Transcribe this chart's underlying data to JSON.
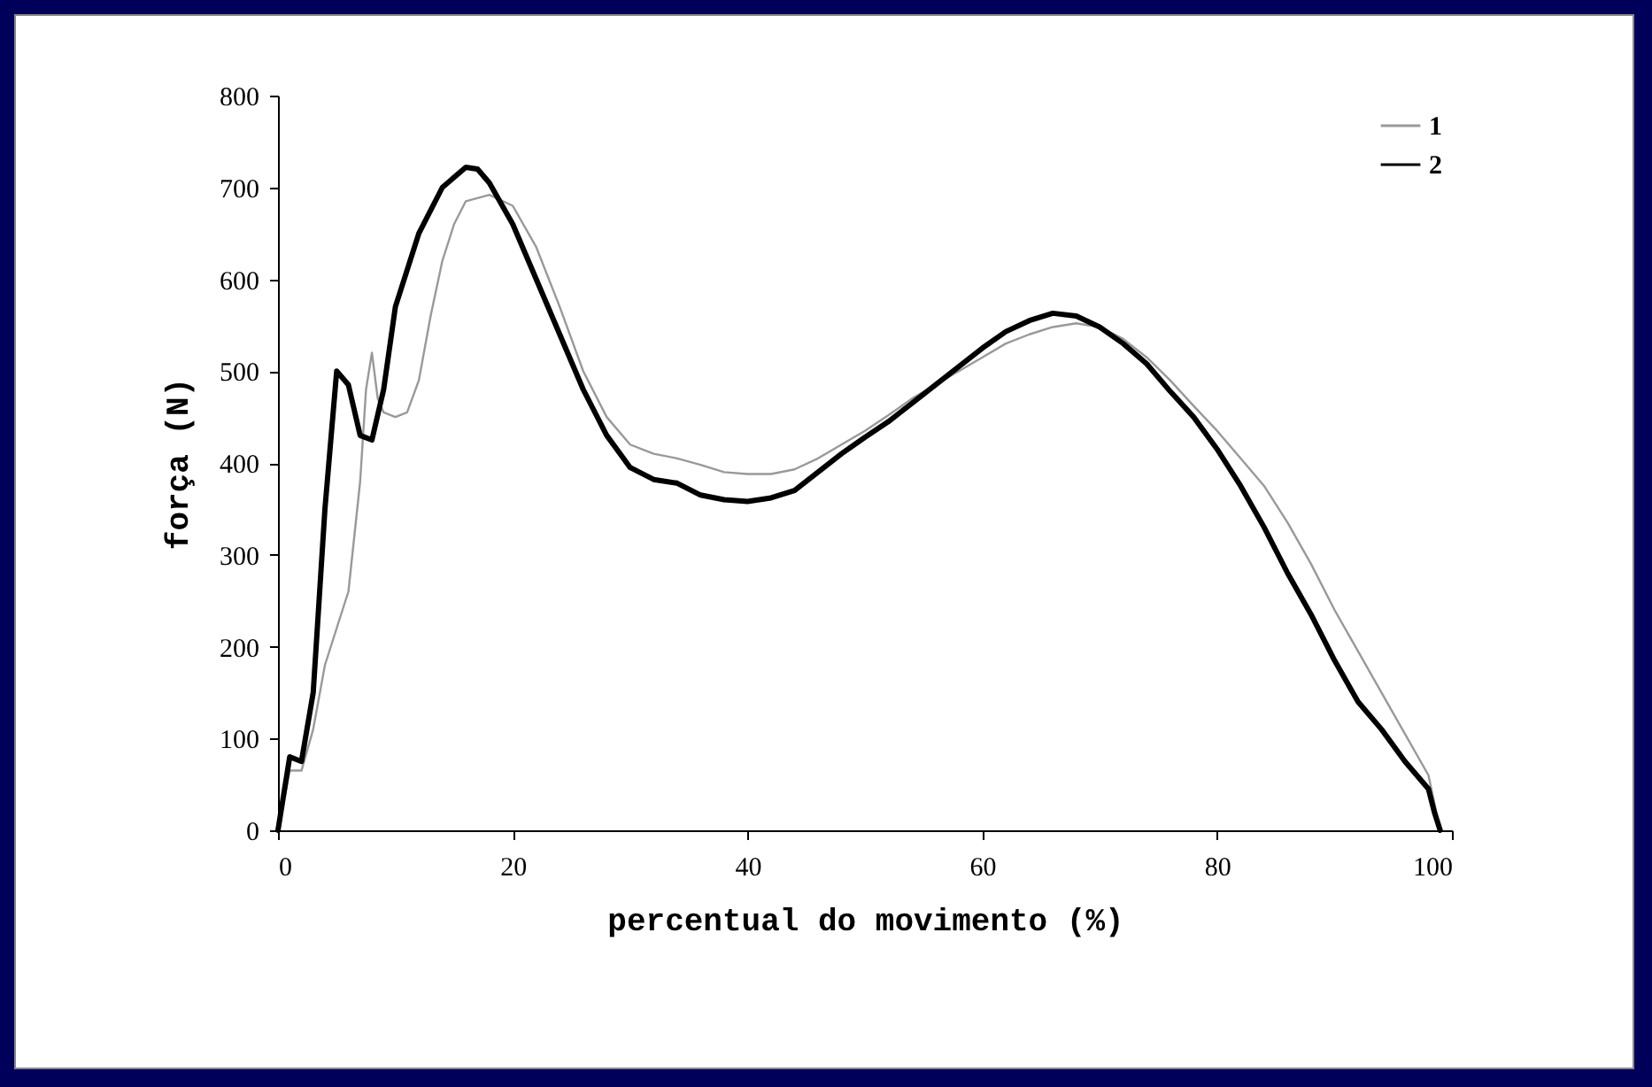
{
  "chart_data": {
    "type": "line",
    "xlabel": "percentual do movimento (%)",
    "ylabel": "força (N)",
    "xlim": [
      0,
      100
    ],
    "xticks": [
      0,
      20,
      40,
      60,
      80,
      100
    ],
    "ylim": [
      0,
      800
    ],
    "yticks": [
      0,
      100,
      200,
      300,
      400,
      500,
      600,
      700,
      800
    ],
    "grid": false,
    "legend": "top right",
    "series": [
      {
        "name": "1",
        "color": "#999999",
        "x": [
          0,
          1,
          2,
          3,
          4,
          5,
          6,
          7,
          7.5,
          8,
          8.5,
          9,
          10,
          11,
          12,
          13,
          14,
          15,
          16,
          18,
          20,
          22,
          24,
          26,
          28,
          30,
          32,
          34,
          36,
          38,
          40,
          42,
          44,
          46,
          48,
          50,
          52,
          54,
          56,
          58,
          60,
          62,
          64,
          66,
          68,
          70,
          72,
          74,
          76,
          78,
          80,
          82,
          84,
          86,
          88,
          90,
          92,
          94,
          96,
          98,
          99
        ],
        "values": [
          0,
          65,
          65,
          110,
          180,
          220,
          260,
          380,
          480,
          520,
          470,
          455,
          450,
          455,
          490,
          560,
          620,
          660,
          685,
          692,
          680,
          635,
          570,
          500,
          450,
          420,
          410,
          405,
          398,
          390,
          388,
          388,
          393,
          405,
          420,
          435,
          452,
          470,
          485,
          500,
          515,
          530,
          540,
          548,
          552,
          548,
          535,
          515,
          490,
          462,
          435,
          405,
          375,
          335,
          290,
          240,
          195,
          150,
          105,
          60,
          0
        ]
      },
      {
        "name": "2",
        "color": "#000000",
        "x": [
          0,
          1,
          2,
          3,
          4,
          5,
          6,
          7,
          8,
          9,
          10,
          12,
          14,
          16,
          17,
          18,
          20,
          22,
          24,
          26,
          28,
          30,
          32,
          34,
          36,
          38,
          40,
          42,
          44,
          46,
          48,
          50,
          52,
          54,
          56,
          58,
          60,
          62,
          64,
          66,
          68,
          70,
          72,
          74,
          76,
          78,
          80,
          82,
          84,
          86,
          88,
          90,
          92,
          94,
          96,
          98,
          98.5,
          99
        ],
        "values": [
          0,
          80,
          75,
          150,
          350,
          500,
          485,
          430,
          425,
          480,
          570,
          650,
          700,
          722,
          720,
          705,
          660,
          600,
          540,
          480,
          430,
          395,
          382,
          378,
          365,
          360,
          358,
          362,
          370,
          390,
          410,
          428,
          445,
          465,
          485,
          505,
          525,
          543,
          555,
          563,
          560,
          548,
          530,
          508,
          478,
          450,
          415,
          375,
          330,
          280,
          235,
          185,
          140,
          110,
          75,
          45,
          20,
          0
        ]
      }
    ]
  }
}
